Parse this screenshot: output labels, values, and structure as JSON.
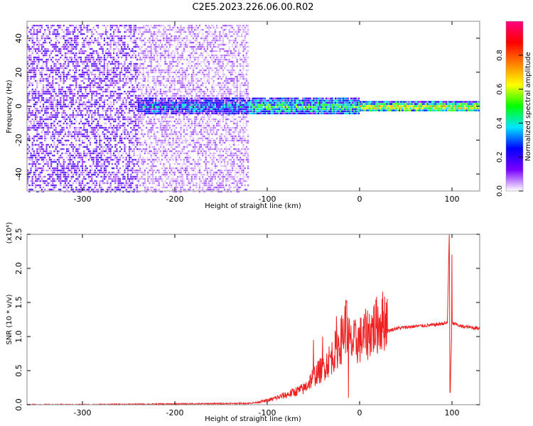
{
  "figure": {
    "title": "C2E5.2023.226.06.00.R02"
  },
  "chart_data": [
    {
      "type": "heatmap",
      "xlabel": "Height of straight line (km)",
      "ylabel": "Frequency (Hz)",
      "xlim": [
        -360,
        130
      ],
      "ylim": [
        -50,
        50
      ],
      "x_ticks": [
        -300,
        -200,
        -100,
        0,
        100
      ],
      "y_ticks": [
        -40,
        -20,
        0,
        20,
        40
      ],
      "x_tick_labels": [
        "-300",
        "-200",
        "-100",
        "0",
        "100"
      ],
      "y_tick_labels": [
        "-40",
        "-20",
        "0",
        "20",
        "40"
      ],
      "colorbar": {
        "label": "Normalized spectral amplitude",
        "range": [
          0.0,
          1.0
        ],
        "ticks": [
          0.0,
          0.2,
          0.4,
          0.6,
          0.8
        ],
        "tick_labels": [
          "0.0",
          "0.2",
          "0.4",
          "0.6",
          "0.8"
        ],
        "colormap": [
          "#ffffff",
          "#7a00ff",
          "#0000ff",
          "#00e5ff",
          "#00ff00",
          "#ffff00",
          "#ff8000",
          "#ff0000",
          "#ff0080"
        ]
      },
      "regions": [
        {
          "x": [
            -360,
            -240
          ],
          "f": [
            -50,
            48
          ],
          "amp": 0.1
        },
        {
          "x": [
            -240,
            -120
          ],
          "f": [
            -50,
            48
          ],
          "amp": 0.05
        },
        {
          "x": [
            -240,
            -120
          ],
          "f": [
            -5,
            5
          ],
          "amp": 0.3
        },
        {
          "x": [
            -120,
            0
          ],
          "f": [
            -5,
            5
          ],
          "amp": 0.45
        },
        {
          "x": [
            0,
            130
          ],
          "f": [
            -3,
            3
          ],
          "amp": 0.65
        }
      ],
      "grid": false
    },
    {
      "type": "line",
      "xlabel": "Height of straight line (km)",
      "ylabel": "SNR (10 * v/v)",
      "y_multiplier": "(x10⁴)",
      "xlim": [
        -360,
        130
      ],
      "ylim": [
        0.0,
        2.5
      ],
      "x_ticks": [
        -300,
        -200,
        -100,
        0,
        100
      ],
      "y_ticks": [
        0.0,
        0.5,
        1.0,
        1.5,
        2.0,
        2.5
      ],
      "x_tick_labels": [
        "-300",
        "-200",
        "-100",
        "0",
        "100"
      ],
      "y_tick_labels": [
        "0.0",
        "0.5",
        "1.0",
        "1.5",
        "2.0",
        "2.5"
      ],
      "series": [
        {
          "color": "#ee2222",
          "x": [
            -360,
            -300,
            -200,
            -120,
            -100,
            -80,
            -60,
            -50,
            -40,
            -30,
            -20,
            -15,
            -10,
            0,
            10,
            20,
            30,
            40,
            60,
            80,
            95,
            97,
            98,
            100,
            110,
            130
          ],
          "y": [
            0.0,
            0.0,
            0.01,
            0.02,
            0.05,
            0.12,
            0.2,
            0.35,
            0.45,
            0.6,
            0.8,
            1.0,
            0.75,
            0.8,
            0.9,
            1.0,
            1.08,
            1.12,
            1.15,
            1.17,
            1.2,
            2.5,
            0.2,
            1.2,
            1.15,
            1.12
          ],
          "spikes": [
            {
              "x": -50,
              "y": 0.95
            },
            {
              "x": -40,
              "y": 1.0
            },
            {
              "x": -25,
              "y": 1.3
            },
            {
              "x": -14,
              "y": 1.52
            },
            {
              "x": -12,
              "y": 0.1
            },
            {
              "x": 97,
              "y": 2.5
            },
            {
              "x": 98,
              "y": 0.18
            },
            {
              "x": 100,
              "y": 2.2
            }
          ]
        }
      ],
      "grid": false
    }
  ]
}
